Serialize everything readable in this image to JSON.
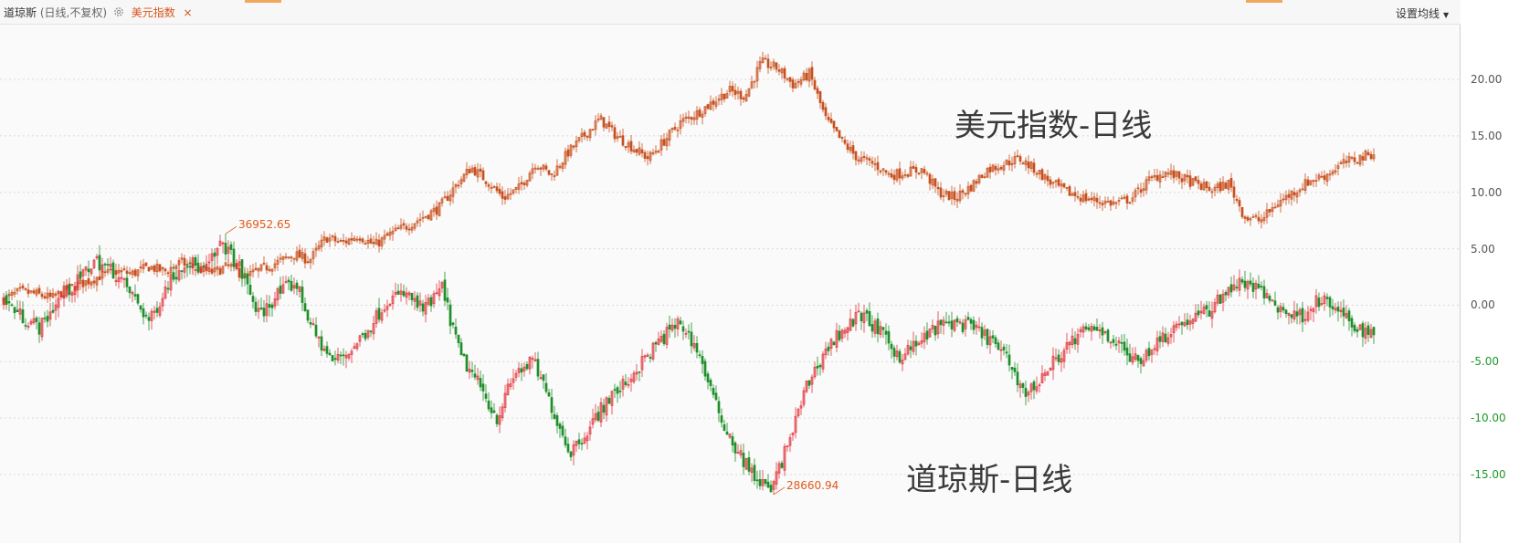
{
  "header": {
    "dow_name": "道琼斯",
    "dow_sub": "(日线,不复权)",
    "usd_name": "美元指数",
    "close_glyph": "×",
    "ma_setting": "设置均线",
    "ma_caret": "▼"
  },
  "overlay_labels": {
    "usd_line": "美元指数-日线",
    "dow_line": "道琼斯-日线"
  },
  "colors": {
    "usd": "#c8501e",
    "up": "#e0363c",
    "down": "#1f8f2a",
    "grid": "#d9d9d9",
    "peak_label": "#e05a1a"
  },
  "chart_data": {
    "type": "line",
    "y_unit": "percent",
    "ylim": [
      -16.5,
      22.8
    ],
    "y_ticks": [
      "20.00",
      "15.00",
      "10.00",
      "5.00",
      "0.00",
      "-5.00",
      "-10.00",
      "-15.00"
    ],
    "grid": "horizontal dotted",
    "series": [
      {
        "name": "美元指数",
        "style": "candlestick",
        "color": "#c8501e",
        "values": [
          0.5,
          1.2,
          1.0,
          0.6,
          1.5,
          2.0,
          2.6,
          3.0,
          2.8,
          3.4,
          3.0,
          3.8,
          3.2,
          2.9,
          3.5,
          2.5,
          3.2,
          3.8,
          4.5,
          4.0,
          6.0,
          5.5,
          6.2,
          5.3,
          6.3,
          7.0,
          7.8,
          8.6,
          10.5,
          12.2,
          11.0,
          9.5,
          10.4,
          12.6,
          11.5,
          13.5,
          15.0,
          16.5,
          15.0,
          14.0,
          13.0,
          14.6,
          16.2,
          17.0,
          18.0,
          19.0,
          18.5,
          21.5,
          21.0,
          19.5,
          20.5,
          16.5,
          14.5,
          13.0,
          12.5,
          11.5,
          11.8,
          12.0,
          10.0,
          9.5,
          10.5,
          12.0,
          12.5,
          13.0,
          12.0,
          10.8,
          10.0,
          9.5,
          9.2,
          9.0,
          9.5,
          11.0,
          11.8,
          11.3,
          10.7,
          10.2,
          10.8,
          7.8,
          7.5,
          9.0,
          10.0,
          11.0,
          11.5,
          12.5,
          13.0,
          13.5
        ]
      },
      {
        "name": "道琼斯",
        "style": "candlestick",
        "color_up": "#e0363c",
        "color_down": "#1f8f2a",
        "values": [
          0.5,
          -1.0,
          -2.0,
          0.5,
          2.0,
          4.0,
          3.0,
          1.0,
          -1.5,
          2.0,
          4.0,
          3.0,
          5.5,
          3.0,
          -1.0,
          1.0,
          2.0,
          -2.5,
          -5.0,
          -4.0,
          -2.0,
          0.5,
          1.0,
          -0.5,
          1.5,
          -4.5,
          -7.0,
          -10.0,
          -6.0,
          -5.0,
          -9.0,
          -13.0,
          -11.0,
          -8.5,
          -7.0,
          -5.0,
          -3.0,
          -1.5,
          -4.0,
          -9.0,
          -12.5,
          -15.0,
          -16.5,
          -12.0,
          -7.0,
          -4.0,
          -2.0,
          -0.8,
          -2.5,
          -4.5,
          -3.5,
          -2.0,
          -1.5,
          -2.0,
          -3.0,
          -5.0,
          -8.0,
          -6.0,
          -4.0,
          -2.5,
          -2.0,
          -3.5,
          -5.0,
          -3.5,
          -2.0,
          -1.2,
          -0.5,
          1.5,
          2.0,
          1.0,
          -0.5,
          -1.0,
          0.5,
          -0.5,
          -2.0,
          -2.5
        ]
      }
    ],
    "annotations": [
      {
        "text": "36952.65",
        "series": "道琼斯",
        "marks": "peak"
      },
      {
        "text": "28660.94",
        "series": "道琼斯",
        "marks": "trough"
      }
    ]
  }
}
